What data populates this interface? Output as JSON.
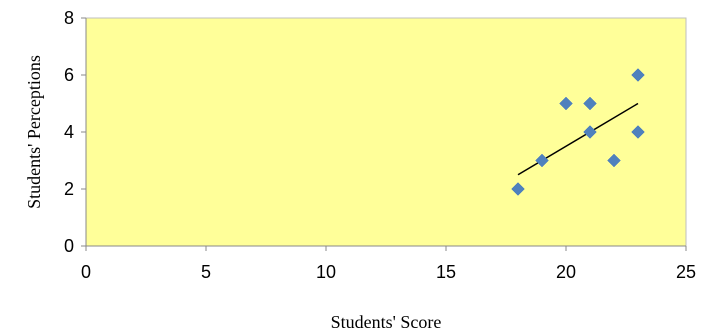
{
  "chart_data": {
    "type": "scatter",
    "title": "",
    "xlabel": "Students' Score",
    "ylabel": "Students' Perceptions",
    "xlim": [
      0,
      25
    ],
    "ylim": [
      0,
      8
    ],
    "x_ticks": [
      0,
      5,
      10,
      15,
      20,
      25
    ],
    "y_ticks": [
      0,
      2,
      4,
      6,
      8
    ],
    "grid": false,
    "legend": "none",
    "series": [
      {
        "points": [
          {
            "x": 18,
            "y": 2
          },
          {
            "x": 19,
            "y": 3
          },
          {
            "x": 20,
            "y": 5
          },
          {
            "x": 21,
            "y": 5
          },
          {
            "x": 21,
            "y": 4
          },
          {
            "x": 22,
            "y": 3
          },
          {
            "x": 23,
            "y": 6
          },
          {
            "x": 23,
            "y": 4
          }
        ]
      }
    ],
    "trendline": {
      "type": "linear",
      "from": {
        "x": 18,
        "y": 2.5
      },
      "to": {
        "x": 23,
        "y": 5.0
      }
    },
    "colors": {
      "plot_background": "#ffff99",
      "marker": "#4f81bd",
      "trendline": "#000000",
      "axis": "#888888"
    }
  }
}
